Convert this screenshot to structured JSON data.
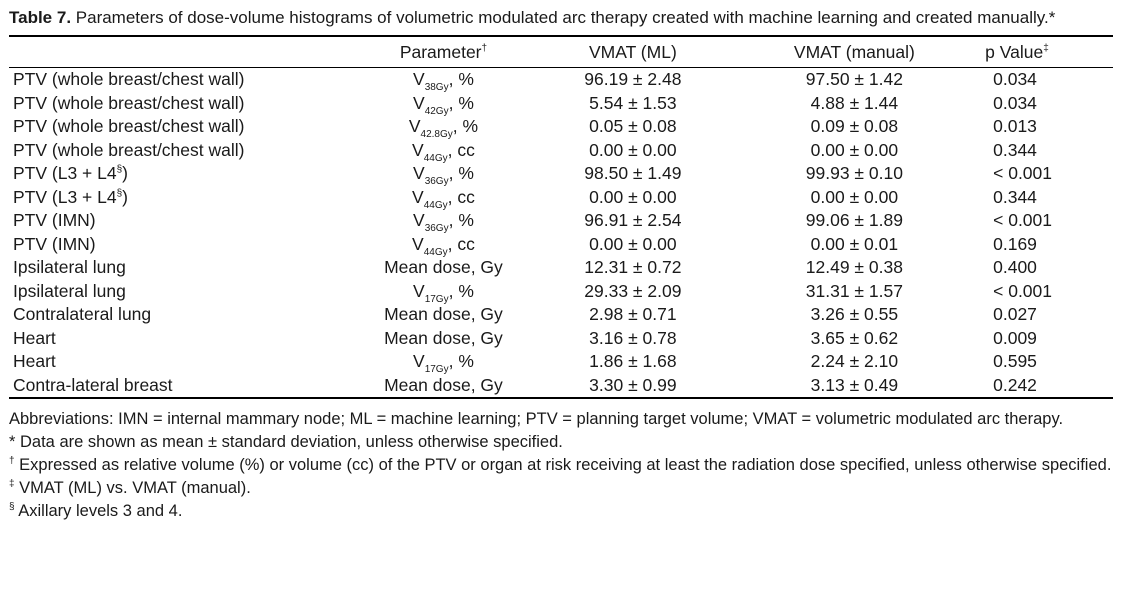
{
  "caption": {
    "label": "Table 7.",
    "text": " Parameters of dose-volume histograms of volumetric modulated arc therapy created with machine learning and created manually.*"
  },
  "table": {
    "headers": {
      "parameter": "Parameter",
      "parameter_mark": "†",
      "ml": "VMAT (ML)",
      "manual": "VMAT (manual)",
      "p": "p Value",
      "p_mark": "‡"
    },
    "rows": [
      {
        "structure": "PTV (whole breast/chest wall)",
        "param": "V",
        "sub": "38Gy",
        "unit": ", %",
        "ml": "96.19 ± 2.48",
        "manual": "97.50 ± 1.42",
        "p": "0.034"
      },
      {
        "structure": "PTV (whole breast/chest wall)",
        "param": "V",
        "sub": "42Gy",
        "unit": ", %",
        "ml": "5.54 ± 1.53",
        "manual": "4.88 ± 1.44",
        "p": "0.034"
      },
      {
        "structure": "PTV (whole breast/chest wall)",
        "param": "V",
        "sub": "42.8Gy",
        "unit": ", %",
        "ml": "0.05 ± 0.08",
        "manual": "0.09 ± 0.08",
        "p": "0.013"
      },
      {
        "structure": "PTV (whole breast/chest wall)",
        "param": "V",
        "sub": "44Gy",
        "unit": ", cc",
        "ml": "0.00 ± 0.00",
        "manual": "0.00 ± 0.00",
        "p": "0.344"
      },
      {
        "structure": "PTV (L3 + L4",
        "mark": "§",
        "structure_end": ")",
        "param": "V",
        "sub": "36Gy",
        "unit": ", %",
        "ml": "98.50 ± 1.49",
        "manual": "99.93 ± 0.10",
        "p": "< 0.001"
      },
      {
        "structure": "PTV (L3 + L4",
        "mark": "§",
        "structure_end": ")",
        "param": "V",
        "sub": "44Gy",
        "unit": ", cc",
        "ml": "0.00 ± 0.00",
        "manual": "0.00 ± 0.00",
        "p": "0.344"
      },
      {
        "structure": "PTV (IMN)",
        "param": "V",
        "sub": "36Gy",
        "unit": ", %",
        "ml": "96.91 ± 2.54",
        "manual": "99.06 ± 1.89",
        "p": "< 0.001"
      },
      {
        "structure": "PTV (IMN)",
        "param": "V",
        "sub": "44Gy",
        "unit": ", cc",
        "ml": "0.00 ± 0.00",
        "manual": "0.00 ± 0.01",
        "p": "0.169"
      },
      {
        "structure": "Ipsilateral lung",
        "param": "Mean dose, Gy",
        "ml": "12.31 ± 0.72",
        "manual": "12.49 ± 0.38",
        "p": "0.400"
      },
      {
        "structure": "Ipsilateral lung",
        "param": "V",
        "sub": "17Gy",
        "unit": ", %",
        "ml": "29.33 ± 2.09",
        "manual": "31.31 ± 1.57",
        "p": "< 0.001"
      },
      {
        "structure": "Contralateral lung",
        "param": "Mean dose, Gy",
        "ml": "2.98 ± 0.71",
        "manual": "3.26 ± 0.55",
        "p": "0.027"
      },
      {
        "structure": "Heart",
        "param": "Mean dose, Gy",
        "ml": "3.16 ± 0.78",
        "manual": "3.65 ± 0.62",
        "p": "0.009"
      },
      {
        "structure": "Heart",
        "param": "V",
        "sub": "17Gy",
        "unit": ", %",
        "ml": "1.86 ± 1.68",
        "manual": "2.24 ± 2.10",
        "p": "0.595"
      },
      {
        "structure": "Contra-lateral breast",
        "param": "Mean dose, Gy",
        "ml": "3.30 ± 0.99",
        "manual": "3.13 ± 0.49",
        "p": "0.242"
      }
    ]
  },
  "notes": {
    "abbreviations": "Abbreviations: IMN = internal mammary node; ML = machine learning; PTV = planning target volume; VMAT = volumetric modulated arc therapy.",
    "star": "* Data are shown as mean ± standard deviation, unless otherwise specified.",
    "dagger_mark": "†",
    "dagger": " Expressed as relative volume (%) or volume (cc) of the PTV or organ at risk receiving at least the radiation dose specified, unless otherwise specified.",
    "ddagger_mark": "‡",
    "ddagger": " VMAT (ML) vs. VMAT (manual).",
    "section_mark": "§",
    "section": " Axillary levels 3 and 4."
  }
}
